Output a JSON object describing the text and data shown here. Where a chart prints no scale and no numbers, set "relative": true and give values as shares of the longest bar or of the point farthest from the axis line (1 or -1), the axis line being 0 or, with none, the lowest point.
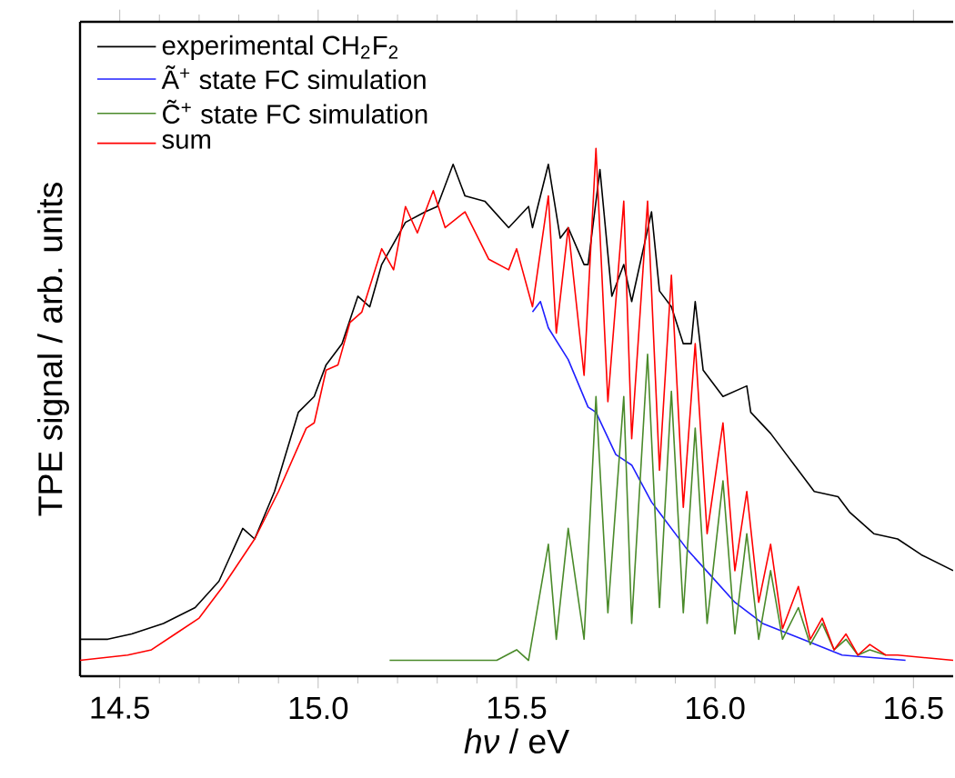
{
  "chart_data": {
    "type": "line",
    "relative": true,
    "xlabel": "*hν* / eV",
    "ylabel": "TPE signal / arb. units",
    "xlim": [
      14.4,
      16.6
    ],
    "xticks": [
      {
        "value": 14.5,
        "label": "14.5"
      },
      {
        "value": 14.6,
        "label": null
      },
      {
        "value": 14.7,
        "label": null
      },
      {
        "value": 14.8,
        "label": null
      },
      {
        "value": 14.9,
        "label": null
      },
      {
        "value": 15.0,
        "label": "15.0"
      },
      {
        "value": 15.1,
        "label": null
      },
      {
        "value": 15.2,
        "label": null
      },
      {
        "value": 15.3,
        "label": null
      },
      {
        "value": 15.4,
        "label": null
      },
      {
        "value": 15.5,
        "label": "15.5"
      },
      {
        "value": 15.6,
        "label": null
      },
      {
        "value": 15.7,
        "label": null
      },
      {
        "value": 15.8,
        "label": null
      },
      {
        "value": 15.9,
        "label": null
      },
      {
        "value": 16.0,
        "label": "16.0"
      },
      {
        "value": 16.1,
        "label": null
      },
      {
        "value": 16.2,
        "label": null
      },
      {
        "value": 16.3,
        "label": null
      },
      {
        "value": 16.4,
        "label": null
      },
      {
        "value": 16.5,
        "label": "16.5"
      }
    ],
    "legend": "top left",
    "line_style": "solid",
    "marker": "none",
    "series": [
      {
        "name": "experimental CH$_{2}$F$_{2}$",
        "color": "#000000",
        "x": [
          14.4,
          14.47,
          14.53,
          14.61,
          14.69,
          14.75,
          14.81,
          14.84,
          14.89,
          14.93,
          14.95,
          14.99,
          15.02,
          15.06,
          15.1,
          15.13,
          15.16,
          15.22,
          15.27,
          15.3,
          15.34,
          15.37,
          15.42,
          15.48,
          15.53,
          15.54,
          15.58,
          15.61,
          15.63,
          15.67,
          15.68,
          15.71,
          15.74,
          15.77,
          15.79,
          15.84,
          15.86,
          15.89,
          15.92,
          15.94,
          15.95,
          15.97,
          16.02,
          16.08,
          16.09,
          16.14,
          16.18,
          16.25,
          16.31,
          16.34,
          16.4,
          16.46,
          16.52,
          16.6
        ],
        "values": [
          0.07,
          0.07,
          0.08,
          0.1,
          0.13,
          0.18,
          0.28,
          0.26,
          0.35,
          0.45,
          0.5,
          0.53,
          0.59,
          0.63,
          0.72,
          0.7,
          0.78,
          0.86,
          0.88,
          0.89,
          0.97,
          0.91,
          0.9,
          0.85,
          0.89,
          0.85,
          0.97,
          0.83,
          0.85,
          0.78,
          0.78,
          0.96,
          0.72,
          0.78,
          0.71,
          0.88,
          0.73,
          0.7,
          0.63,
          0.63,
          0.71,
          0.58,
          0.53,
          0.55,
          0.5,
          0.46,
          0.42,
          0.35,
          0.34,
          0.31,
          0.27,
          0.26,
          0.23,
          0.2
        ]
      },
      {
        "name": "Ã$^{+}$ state FC simulation",
        "color": "#1f1fff",
        "x": [
          15.54,
          15.56,
          15.58,
          15.63,
          15.68,
          15.7,
          15.75,
          15.79,
          15.84,
          15.86,
          15.93,
          15.99,
          16.05,
          16.12,
          16.22,
          16.32,
          16.48
        ],
        "values": [
          0.69,
          0.71,
          0.66,
          0.6,
          0.51,
          0.5,
          0.42,
          0.4,
          0.33,
          0.31,
          0.24,
          0.19,
          0.14,
          0.1,
          0.07,
          0.04,
          0.03
        ]
      },
      {
        "name": "C̃$^{+}$ state FC simulation",
        "color": "#4a8a2a",
        "x": [
          15.18,
          15.45,
          15.5,
          15.53,
          15.58,
          15.6,
          15.63,
          15.67,
          15.7,
          15.73,
          15.77,
          15.79,
          15.83,
          15.86,
          15.89,
          15.92,
          15.95,
          15.98,
          16.02,
          16.05,
          16.08,
          16.11,
          16.14,
          16.17,
          16.21,
          16.24,
          16.27,
          16.3,
          16.33,
          16.36,
          16.39,
          16.43
        ],
        "values": [
          0.03,
          0.03,
          0.05,
          0.03,
          0.25,
          0.07,
          0.28,
          0.07,
          0.53,
          0.12,
          0.53,
          0.1,
          0.61,
          0.13,
          0.54,
          0.12,
          0.47,
          0.1,
          0.37,
          0.08,
          0.27,
          0.07,
          0.2,
          0.07,
          0.13,
          0.06,
          0.1,
          0.05,
          0.07,
          0.04,
          0.05,
          0.04
        ]
      },
      {
        "name": "sum",
        "color": "#ff0000",
        "x": [
          14.4,
          14.52,
          14.58,
          14.64,
          14.7,
          14.76,
          14.84,
          14.9,
          14.97,
          14.99,
          15.02,
          15.05,
          15.08,
          15.11,
          15.16,
          15.19,
          15.22,
          15.25,
          15.29,
          15.32,
          15.37,
          15.43,
          15.48,
          15.5,
          15.54,
          15.58,
          15.6,
          15.63,
          15.67,
          15.7,
          15.73,
          15.77,
          15.79,
          15.83,
          15.86,
          15.89,
          15.92,
          15.95,
          15.98,
          16.02,
          16.05,
          16.08,
          16.11,
          16.14,
          16.17,
          16.21,
          16.24,
          16.27,
          16.3,
          16.33,
          16.36,
          16.39,
          16.43,
          16.46,
          16.6
        ],
        "values": [
          0.03,
          0.04,
          0.05,
          0.08,
          0.11,
          0.17,
          0.26,
          0.35,
          0.47,
          0.48,
          0.58,
          0.59,
          0.67,
          0.69,
          0.81,
          0.77,
          0.89,
          0.84,
          0.92,
          0.85,
          0.88,
          0.79,
          0.77,
          0.81,
          0.7,
          0.91,
          0.65,
          0.85,
          0.57,
          1,
          0.52,
          0.9,
          0.45,
          0.9,
          0.39,
          0.76,
          0.32,
          0.63,
          0.27,
          0.48,
          0.2,
          0.35,
          0.14,
          0.25,
          0.09,
          0.17,
          0.07,
          0.11,
          0.05,
          0.08,
          0.04,
          0.06,
          0.04,
          0.04,
          0.03
        ]
      }
    ]
  }
}
